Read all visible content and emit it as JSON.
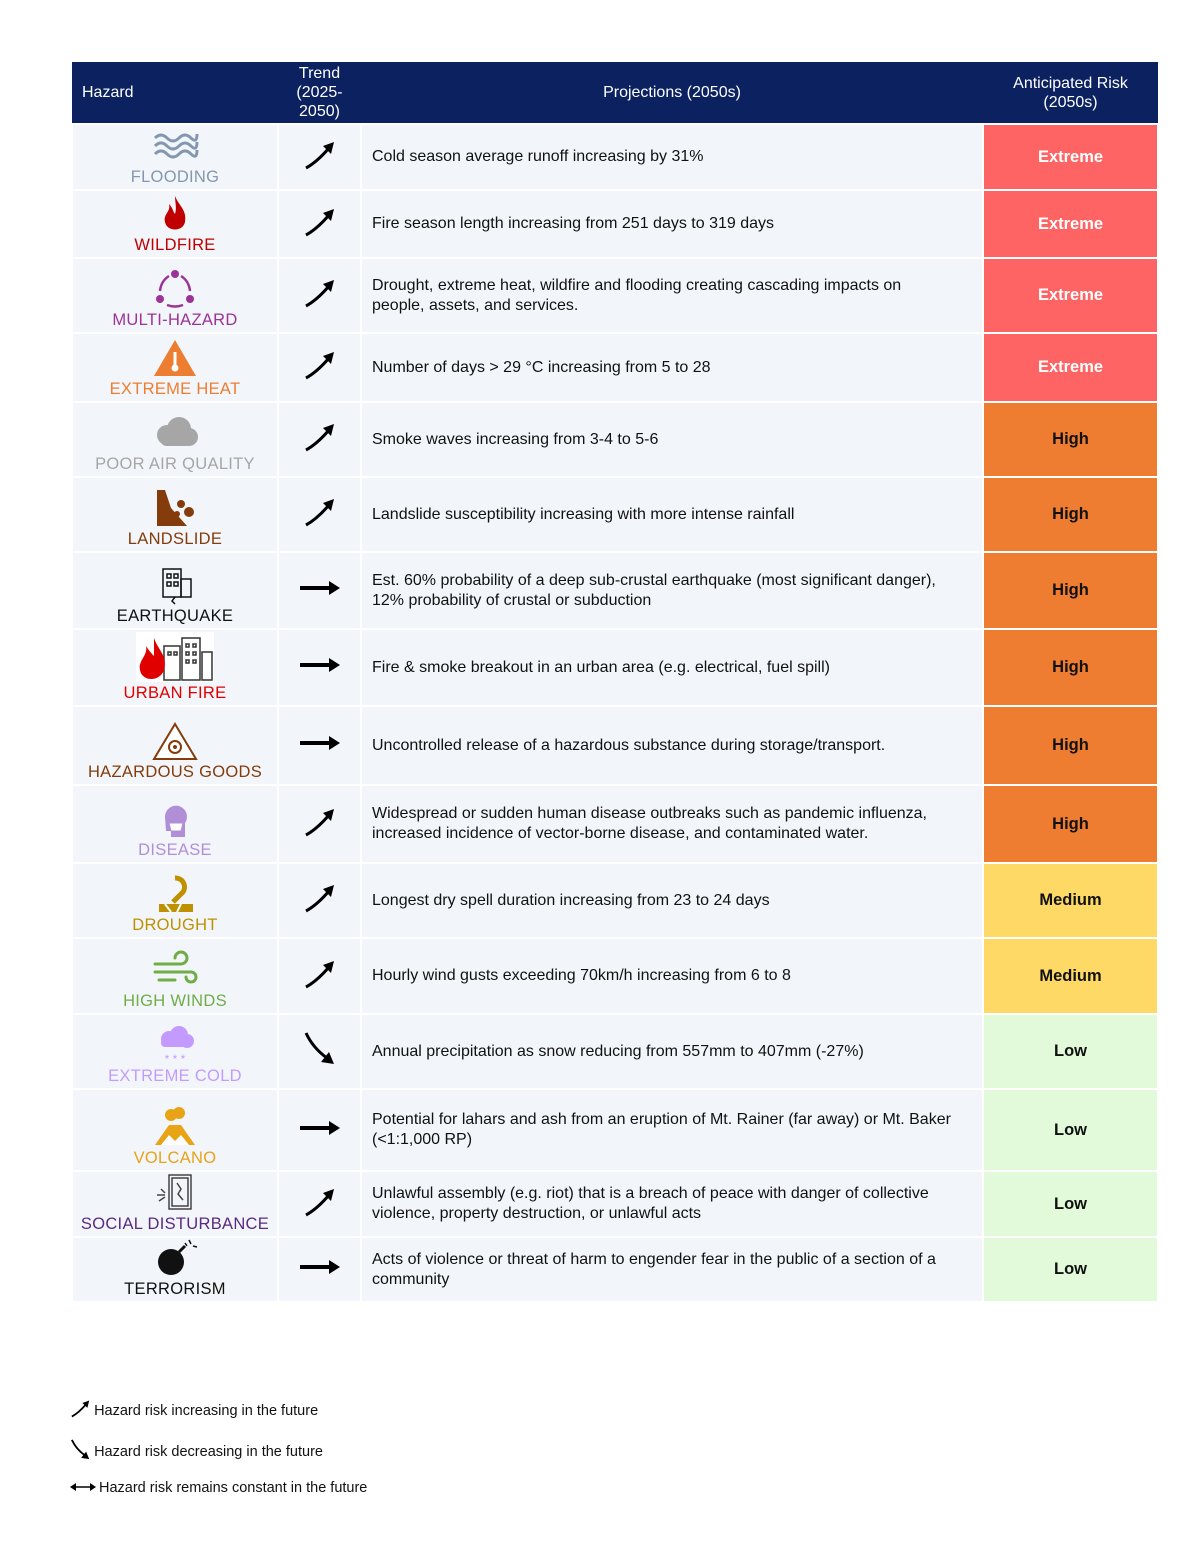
{
  "header": {
    "hazard": "Hazard",
    "trend": "Trend (2025-2050)",
    "projections": "Projections (2050s)",
    "risk": "Anticipated Risk (2050s)"
  },
  "risk_colors": {
    "Extreme": "#fe6464",
    "High": "#ee7d31",
    "Medium": "#ffd966",
    "Low": "#e2fada"
  },
  "risk_text_colors": {
    "Extreme": "#ffffff",
    "High": "#111111",
    "Medium": "#111111",
    "Low": "#111111"
  },
  "rows": [
    {
      "hazard": "FLOODING",
      "icon": "waves-icon",
      "color": "#8497b0",
      "trend": "increasing",
      "projection": "Cold season average runoff increasing by 31%",
      "risk": "Extreme"
    },
    {
      "hazard": "WILDFIRE",
      "icon": "flame-icon",
      "color": "#c00000",
      "trend": "increasing",
      "projection": "Fire season length increasing from 251 days to 319 days",
      "risk": "Extreme"
    },
    {
      "hazard": "MULTI-HAZARD",
      "icon": "cycle-icon",
      "color": "#9c3397",
      "trend": "increasing",
      "projection": "Drought, extreme heat, wildfire and flooding creating cascading impacts on people, assets, and services.",
      "risk": "Extreme"
    },
    {
      "hazard": "EXTREME HEAT",
      "icon": "thermometer-warning-icon",
      "color": "#ed7d31",
      "trend": "increasing",
      "projection": "Number of days > 29 °C increasing from 5 to 28",
      "risk": "Extreme"
    },
    {
      "hazard": "POOR AIR QUALITY",
      "icon": "cloud-icon",
      "color": "#a6a6a6",
      "trend": "increasing",
      "projection": "Smoke waves increasing from 3-4 to 5-6",
      "risk": "High"
    },
    {
      "hazard": "LANDSLIDE",
      "icon": "landslide-icon",
      "color": "#843c0c",
      "trend": "increasing",
      "projection": "Landslide susceptibility increasing with more intense rainfall",
      "risk": "High"
    },
    {
      "hazard": "EARTHQUAKE",
      "icon": "cracked-building-icon",
      "color": "#111111",
      "trend": "constant",
      "projection": "Est. 60% probability of a deep sub-crustal earthquake (most significant danger), 12% probability of crustal or subduction",
      "risk": "High"
    },
    {
      "hazard": "URBAN FIRE",
      "icon": "burning-building-icon",
      "color": "#e00000",
      "trend": "constant",
      "projection": "Fire & smoke breakout in an urban area (e.g. electrical, fuel spill)",
      "risk": "High"
    },
    {
      "hazard": "HAZARDOUS GOODS",
      "icon": "biohazard-icon",
      "color": "#843c0c",
      "trend": "constant",
      "projection": "Uncontrolled release of a hazardous substance during storage/transport.",
      "risk": "High"
    },
    {
      "hazard": "DISEASE",
      "icon": "masked-head-icon",
      "color": "#b18fd8",
      "trend": "increasing",
      "projection": "Widespread or sudden human disease outbreaks such as pandemic influenza, increased incidence of vector-borne disease, and contaminated water.",
      "risk": "High"
    },
    {
      "hazard": "DROUGHT",
      "icon": "drought-icon",
      "color": "#bf9000",
      "trend": "increasing",
      "projection": "Longest dry spell duration increasing from 23 to 24 days",
      "risk": "Medium"
    },
    {
      "hazard": "HIGH WINDS",
      "icon": "wind-icon",
      "color": "#70ad47",
      "trend": "increasing",
      "projection": "Hourly wind gusts exceeding 70km/h increasing from 6 to 8",
      "risk": "Medium"
    },
    {
      "hazard": "EXTREME COLD",
      "icon": "snow-cloud-icon",
      "color": "#c39bff",
      "trend": "decreasing",
      "projection": "Annual precipitation as snow reducing from 557mm to 407mm (-27%)",
      "risk": "Low"
    },
    {
      "hazard": "VOLCANO",
      "icon": "volcano-icon",
      "color": "#e8a317",
      "trend": "constant",
      "projection": "Potential for lahars and ash from an eruption of Mt. Rainer (far away) or Mt. Baker (<1:1,000 RP)",
      "risk": "Low"
    },
    {
      "hazard": "SOCIAL DISTURBANCE",
      "icon": "broken-window-icon",
      "color": "#5a2a82",
      "trend": "increasing",
      "projection": "Unlawful assembly (e.g. riot) that is a breach of peace with danger of collective violence, property destruction, or unlawful acts",
      "risk": "Low"
    },
    {
      "hazard": "TERRORISM",
      "icon": "bomb-icon",
      "color": "#111111",
      "trend": "constant",
      "projection": "Acts of violence or threat of harm to engender fear in the public of a section of a community",
      "risk": "Low"
    }
  ],
  "legend": [
    {
      "trend": "increasing",
      "label": "Hazard risk increasing in the future"
    },
    {
      "trend": "decreasing",
      "label": "Hazard risk decreasing in the future"
    },
    {
      "trend": "constant",
      "label": "Hazard risk remains constant in the future"
    }
  ]
}
